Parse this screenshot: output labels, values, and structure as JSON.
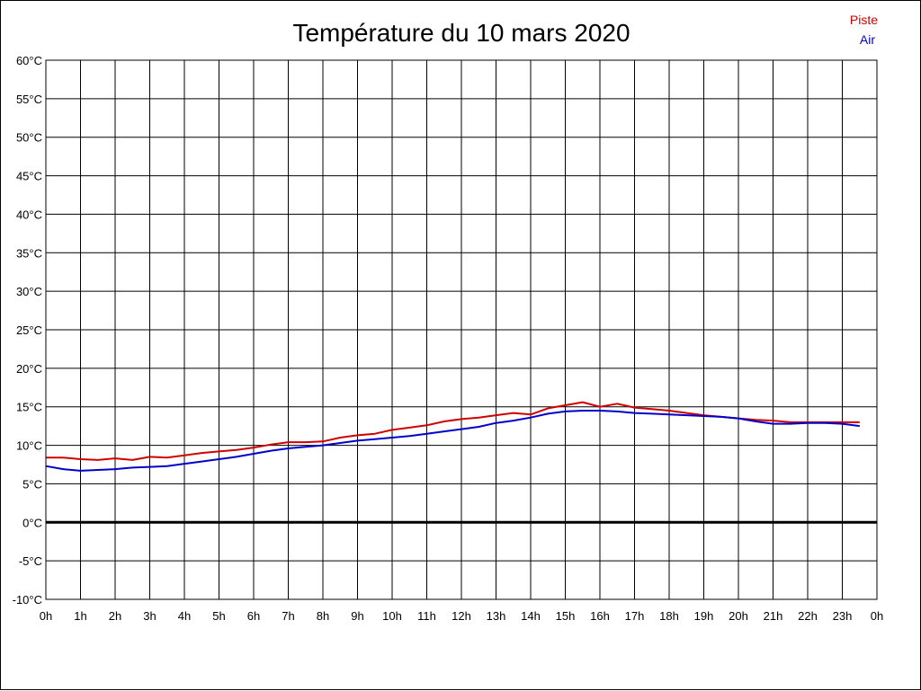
{
  "chart_data": {
    "type": "line",
    "title": "Température du 10 mars 2020",
    "xlabel": "",
    "ylabel": "",
    "xlim": [
      0,
      24
    ],
    "ylim": [
      -10,
      60
    ],
    "x_ticks": [
      "0h",
      "1h",
      "2h",
      "3h",
      "4h",
      "5h",
      "6h",
      "7h",
      "8h",
      "9h",
      "10h",
      "11h",
      "12h",
      "13h",
      "14h",
      "15h",
      "16h",
      "17h",
      "18h",
      "19h",
      "20h",
      "21h",
      "22h",
      "23h",
      "0h"
    ],
    "y_ticks": [
      "-10°C",
      "-5°C",
      "0°C",
      "5°C",
      "10°C",
      "15°C",
      "20°C",
      "25°C",
      "30°C",
      "35°C",
      "40°C",
      "45°C",
      "50°C",
      "55°C",
      "60°C"
    ],
    "grid": true,
    "legend": "top-right",
    "series": [
      {
        "name": "Piste",
        "color": "#d00000",
        "x": [
          0,
          0.5,
          1,
          1.5,
          2,
          2.5,
          3,
          3.5,
          4,
          4.5,
          5,
          5.5,
          6,
          6.5,
          7,
          7.5,
          8,
          8.5,
          9,
          9.5,
          10,
          10.5,
          11,
          11.5,
          12,
          12.5,
          13,
          13.5,
          14,
          14.5,
          15,
          15.5,
          16,
          16.5,
          17,
          17.5,
          18,
          18.5,
          19,
          19.5,
          20,
          20.5,
          21,
          21.5,
          22,
          22.5,
          23,
          23.5
        ],
        "y": [
          8.4,
          8.4,
          8.2,
          8.1,
          8.3,
          8.1,
          8.5,
          8.4,
          8.7,
          9.0,
          9.2,
          9.4,
          9.7,
          10.1,
          10.4,
          10.4,
          10.5,
          11.0,
          11.3,
          11.5,
          12.0,
          12.3,
          12.6,
          13.1,
          13.4,
          13.6,
          13.9,
          14.2,
          14.0,
          14.8,
          15.2,
          15.6,
          15.0,
          15.4,
          14.9,
          14.7,
          14.5,
          14.2,
          13.9,
          13.7,
          13.5,
          13.3,
          13.2,
          13.0,
          13.0,
          13.0,
          13.0,
          13.0
        ]
      },
      {
        "name": "Air",
        "color": "#0000cc",
        "x": [
          0,
          0.5,
          1,
          1.5,
          2,
          2.5,
          3,
          3.5,
          4,
          4.5,
          5,
          5.5,
          6,
          6.5,
          7,
          7.5,
          8,
          8.5,
          9,
          9.5,
          10,
          10.5,
          11,
          11.5,
          12,
          12.5,
          13,
          13.5,
          14,
          14.5,
          15,
          15.5,
          16,
          16.5,
          17,
          17.5,
          18,
          18.5,
          19,
          19.5,
          20,
          20.5,
          21,
          21.5,
          22,
          22.5,
          23,
          23.5
        ],
        "y": [
          7.3,
          6.9,
          6.7,
          6.8,
          6.9,
          7.1,
          7.2,
          7.3,
          7.6,
          7.9,
          8.2,
          8.5,
          8.9,
          9.3,
          9.6,
          9.8,
          10.0,
          10.3,
          10.6,
          10.8,
          11.0,
          11.2,
          11.5,
          11.8,
          12.1,
          12.4,
          12.9,
          13.2,
          13.6,
          14.1,
          14.4,
          14.5,
          14.5,
          14.4,
          14.2,
          14.1,
          14.0,
          13.9,
          13.8,
          13.7,
          13.5,
          13.1,
          12.8,
          12.8,
          12.9,
          12.9,
          12.8,
          12.5
        ]
      }
    ]
  }
}
